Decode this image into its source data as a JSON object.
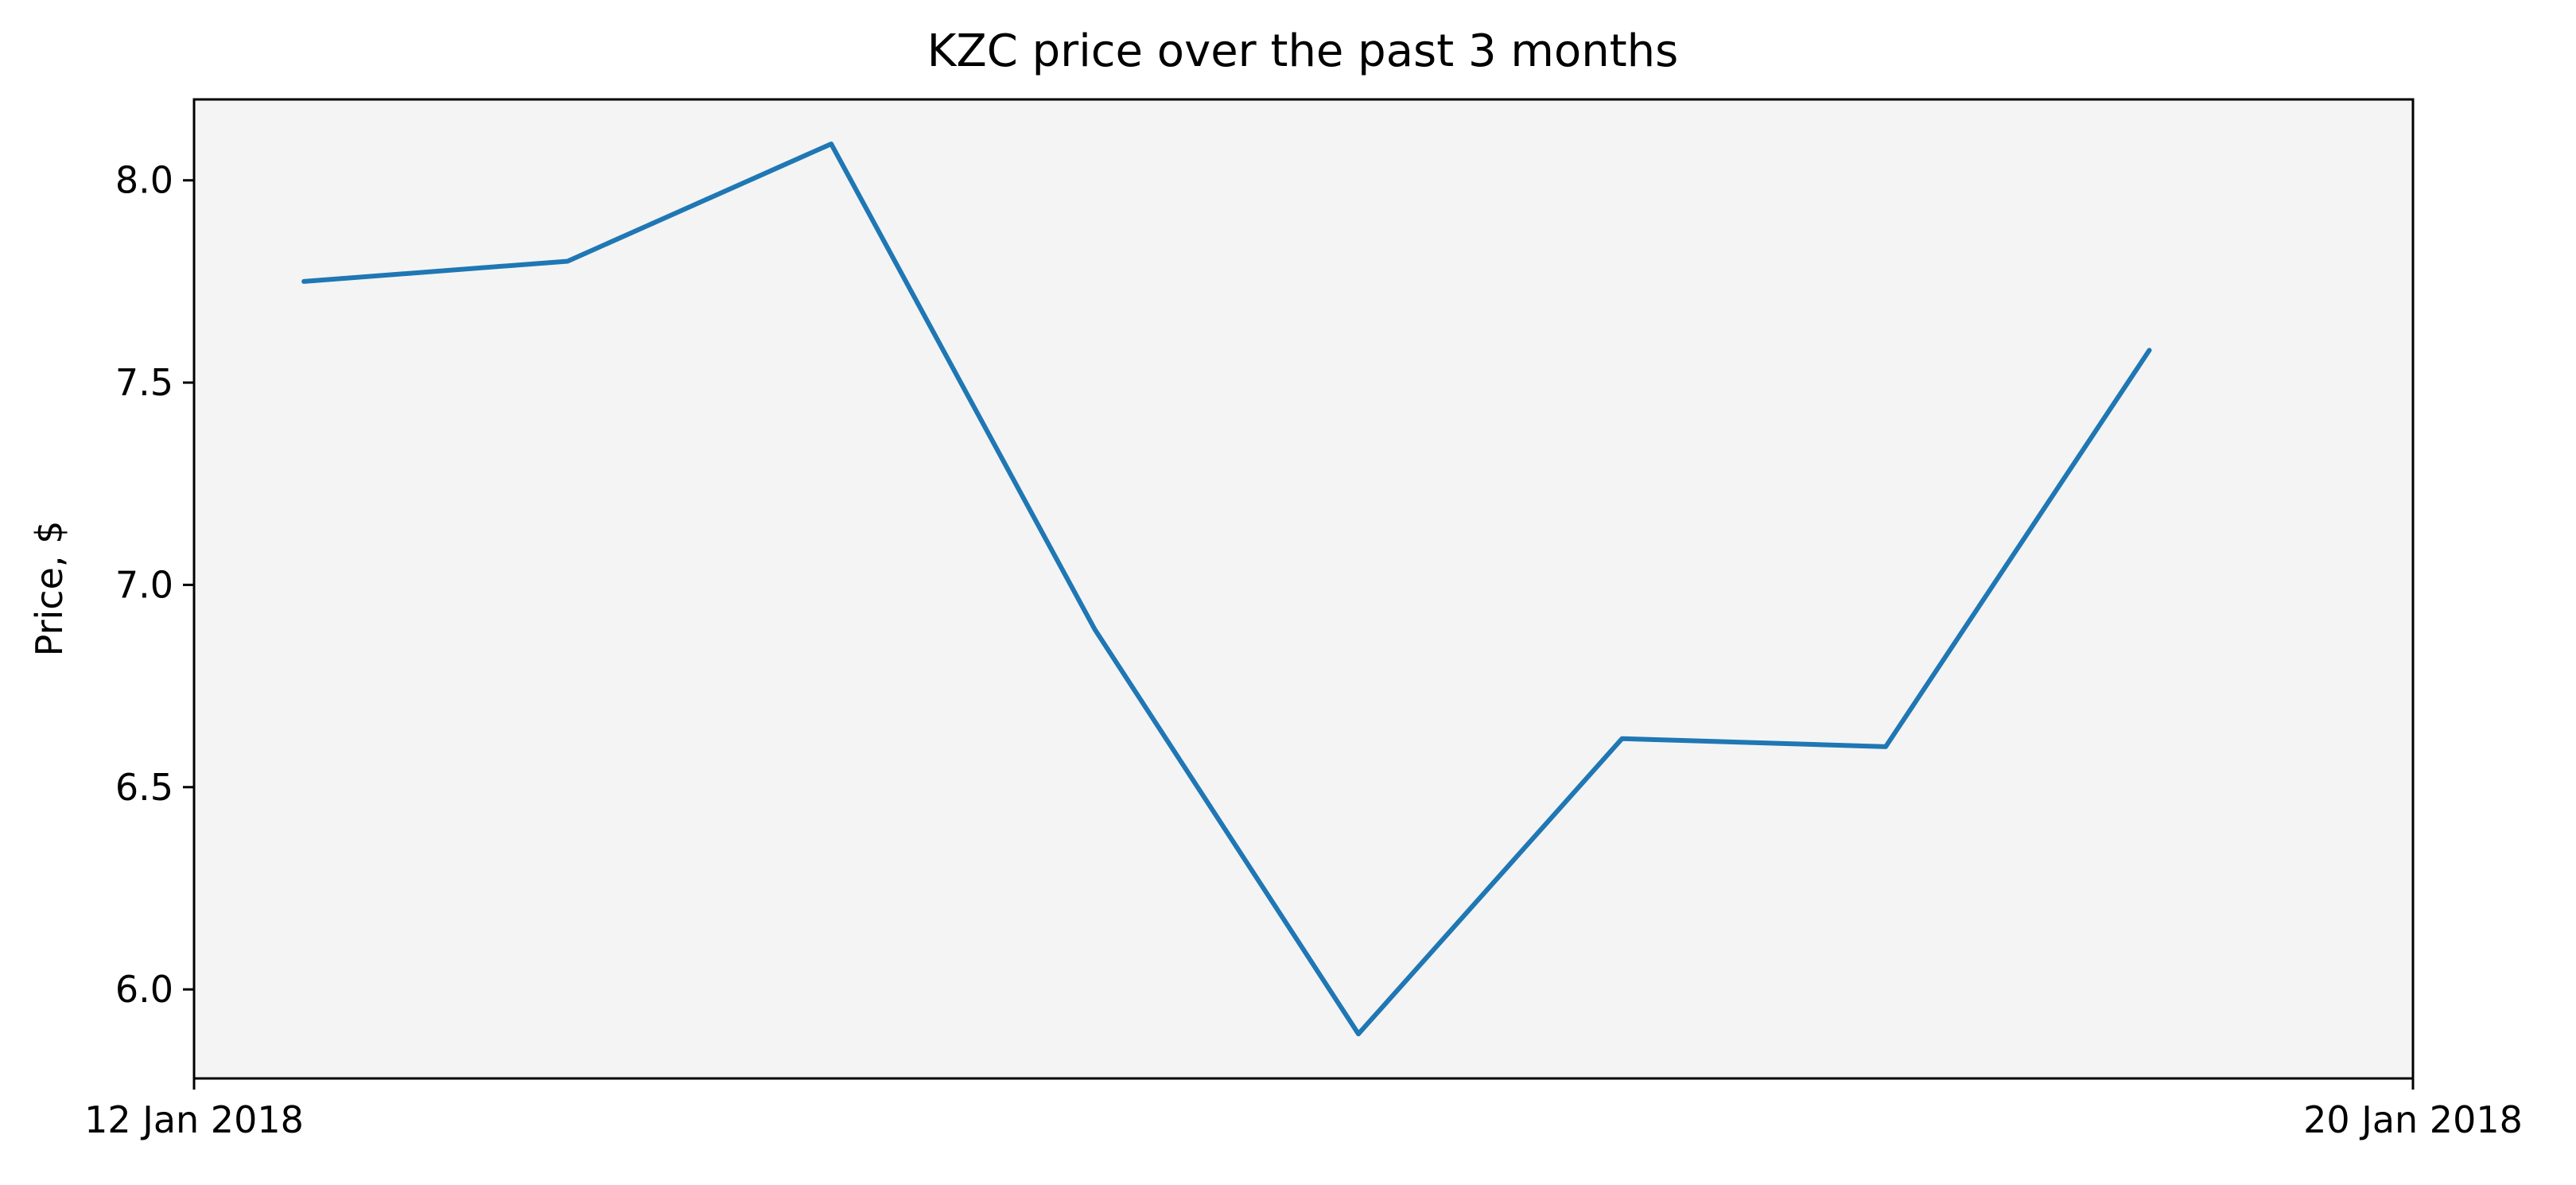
{
  "chart_data": {
    "type": "line",
    "title": "KZC price over the past 3 months",
    "xlabel": "",
    "ylabel": "Price, $",
    "x_ticks": [
      "12 Jan 2018",
      "20 Jan 2018"
    ],
    "y_ticks": [
      "6.0",
      "6.5",
      "7.0",
      "7.5",
      "8.0"
    ],
    "x": [
      "2018-01-12",
      "2018-01-13",
      "2018-01-14",
      "2018-01-15",
      "2018-01-16",
      "2018-01-17",
      "2018-01-18",
      "2018-01-19"
    ],
    "series": [
      {
        "name": "",
        "values": [
          7.75,
          7.8,
          8.09,
          6.89,
          5.89,
          6.62,
          6.6,
          7.58
        ]
      }
    ],
    "ylim": [
      5.78,
      8.2
    ],
    "xlim": [
      "2018-01-11 14:00",
      "2018-01-20"
    ],
    "grid": false,
    "legend": "none",
    "colors": {
      "line": "#1f77b4",
      "plot_background": "#f4f4f5",
      "axes": "#000000"
    }
  }
}
